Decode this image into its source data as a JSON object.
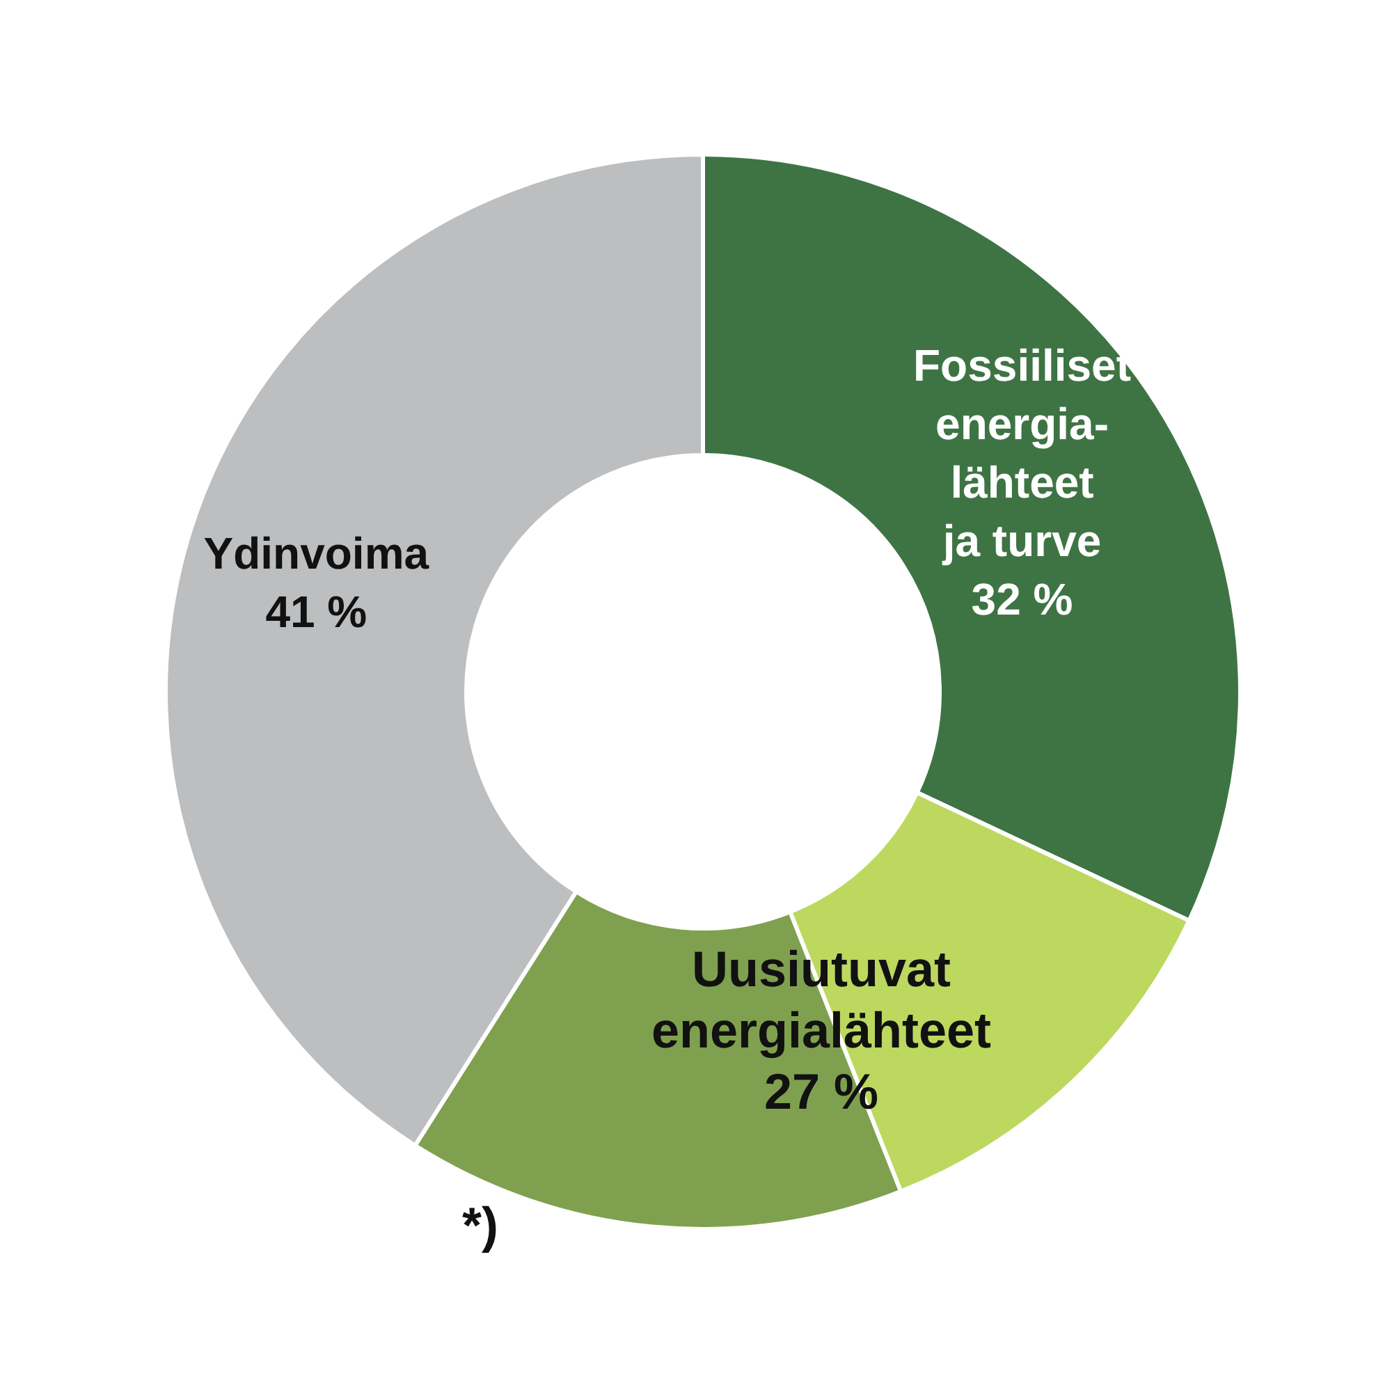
{
  "chart_data": {
    "type": "donut",
    "categories": [
      "Fossiiliset\nenergia-\nlähteet\nja turve",
      null,
      null,
      "Ydinvoima"
    ],
    "values": [
      32,
      12,
      15,
      41
    ],
    "value_labels": [
      "32 %",
      null,
      null,
      "41 %"
    ],
    "colors": [
      "#3e7444",
      "#bdd85f",
      "#7fa14f",
      "#bdbec0"
    ],
    "annotations": [
      "Uusiutuvat\nenergialähteet\n27 %",
      "*)"
    ],
    "legend": false
  }
}
